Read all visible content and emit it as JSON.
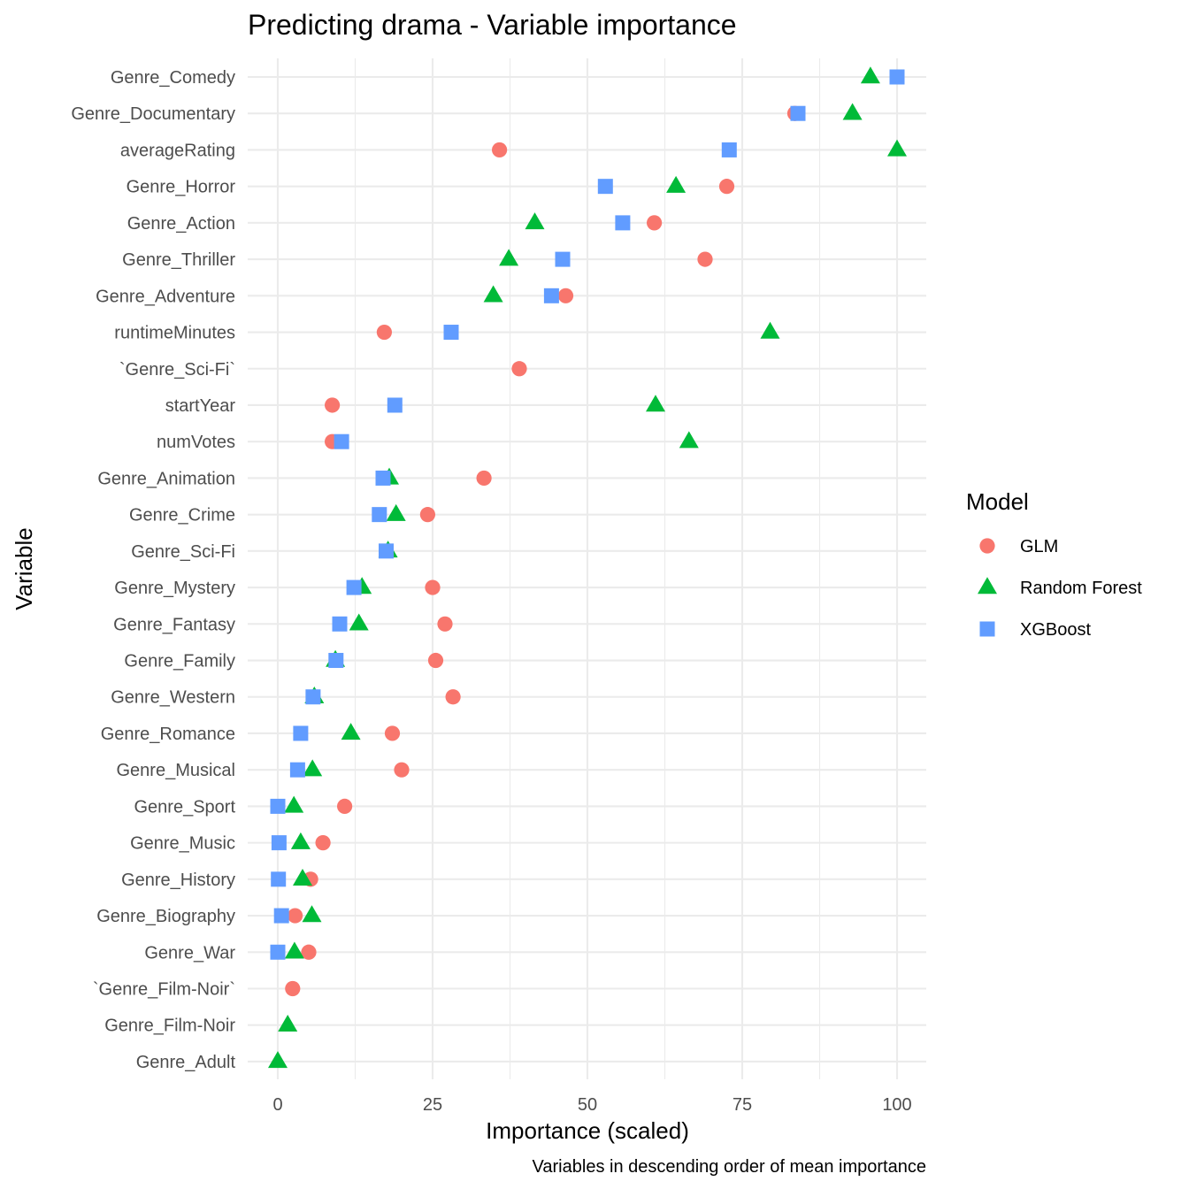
{
  "chart_data": {
    "type": "scatter",
    "title": "Predicting drama - Variable importance",
    "xlabel": "Importance (scaled)",
    "ylabel": "Variable",
    "caption": "Variables in descending order of mean importance",
    "xlim": [
      -4.5,
      104.5
    ],
    "x_ticks": [
      0,
      25,
      50,
      75,
      100
    ],
    "x_tick_labels": [
      "0",
      "25",
      "50",
      "75",
      "100"
    ],
    "grid": true,
    "legend": {
      "title": "Model",
      "position": "right"
    },
    "categories": [
      "Genre_Comedy",
      "Genre_Documentary",
      "averageRating",
      "Genre_Horror",
      "Genre_Action",
      "Genre_Thriller",
      "Genre_Adventure",
      "runtimeMinutes",
      "`Genre_Sci-Fi`",
      "startYear",
      "numVotes",
      "Genre_Animation",
      "Genre_Crime",
      "Genre_Sci-Fi",
      "Genre_Mystery",
      "Genre_Fantasy",
      "Genre_Family",
      "Genre_Western",
      "Genre_Romance",
      "Genre_Musical",
      "Genre_Sport",
      "Genre_Music",
      "Genre_History",
      "Genre_Biography",
      "Genre_War",
      "`Genre_Film-Noir`",
      "Genre_Film-Noir",
      "Genre_Adult"
    ],
    "series": [
      {
        "name": "GLM",
        "color": "#F8766D",
        "shape": "circle",
        "values": [
          null,
          83.5,
          35.8,
          72.5,
          60.8,
          69.0,
          46.5,
          17.2,
          39.0,
          8.8,
          8.8,
          33.3,
          24.2,
          null,
          25.0,
          27.0,
          25.5,
          28.3,
          18.5,
          20.0,
          10.8,
          7.3,
          5.3,
          2.8,
          5.0,
          2.4,
          null,
          null
        ]
      },
      {
        "name": "Random Forest",
        "color": "#00BA38",
        "shape": "triangle",
        "values": [
          95.7,
          92.8,
          100.0,
          64.3,
          41.5,
          37.3,
          34.8,
          79.5,
          null,
          61.0,
          66.4,
          18.0,
          19.1,
          17.8,
          13.6,
          13.1,
          9.3,
          5.9,
          11.8,
          5.6,
          2.6,
          3.7,
          4.0,
          5.5,
          2.7,
          null,
          1.6,
          0.0
        ]
      },
      {
        "name": "XGBoost",
        "color": "#619CFF",
        "shape": "square",
        "values": [
          100.0,
          84.0,
          72.9,
          52.9,
          55.7,
          46.0,
          44.2,
          28.0,
          null,
          18.9,
          10.3,
          17.0,
          16.4,
          17.5,
          12.3,
          10.0,
          9.4,
          5.7,
          3.7,
          3.2,
          0.0,
          0.2,
          0.1,
          0.6,
          0.0,
          null,
          null,
          null
        ]
      }
    ]
  }
}
